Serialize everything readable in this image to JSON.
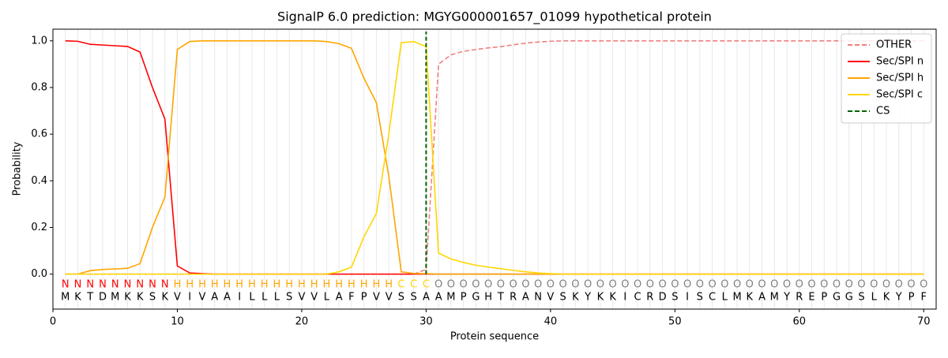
{
  "chart_data": {
    "type": "line",
    "title": "SignalP 6.0 prediction: MGYG000001657_01099 hypothetical protein",
    "xlabel": "Protein sequence",
    "ylabel": "Probability",
    "x": [
      1,
      2,
      3,
      4,
      5,
      6,
      7,
      8,
      9,
      10,
      11,
      12,
      13,
      14,
      15,
      16,
      17,
      18,
      19,
      20,
      21,
      22,
      23,
      24,
      25,
      26,
      27,
      28,
      29,
      30,
      31,
      32,
      33,
      34,
      35,
      36,
      37,
      38,
      39,
      40,
      41,
      42,
      43,
      44,
      45,
      46,
      47,
      48,
      49,
      50,
      51,
      52,
      53,
      54,
      55,
      56,
      57,
      58,
      59,
      60,
      61,
      62,
      63,
      64,
      65,
      66,
      67,
      68,
      69,
      70
    ],
    "sequence": [
      "M",
      "K",
      "T",
      "D",
      "M",
      "K",
      "K",
      "S",
      "K",
      "V",
      "I",
      "V",
      "A",
      "A",
      "I",
      "L",
      "L",
      "L",
      "S",
      "V",
      "V",
      "L",
      "A",
      "F",
      "P",
      "V",
      "V",
      "S",
      "S",
      "A",
      "A",
      "M",
      "P",
      "G",
      "H",
      "T",
      "R",
      "A",
      "N",
      "V",
      "S",
      "K",
      "Y",
      "K",
      "K",
      "I",
      "C",
      "R",
      "D",
      "S",
      "I",
      "S",
      "C",
      "L",
      "M",
      "K",
      "A",
      "M",
      "Y",
      "R",
      "E",
      "P",
      "G",
      "G",
      "S",
      "L",
      "K",
      "Y",
      "P",
      "F"
    ],
    "regions": [
      "N",
      "N",
      "N",
      "N",
      "N",
      "N",
      "N",
      "N",
      "N",
      "H",
      "H",
      "H",
      "H",
      "H",
      "H",
      "H",
      "H",
      "H",
      "H",
      "H",
      "H",
      "H",
      "H",
      "H",
      "H",
      "H",
      "H",
      "C",
      "C",
      "C",
      "O",
      "O",
      "O",
      "O",
      "O",
      "O",
      "O",
      "O",
      "O",
      "O",
      "O",
      "O",
      "O",
      "O",
      "O",
      "O",
      "O",
      "O",
      "O",
      "O",
      "O",
      "O",
      "O",
      "O",
      "O",
      "O",
      "O",
      "O",
      "O",
      "O",
      "O",
      "O",
      "O",
      "O",
      "O",
      "O",
      "O",
      "O",
      "O",
      "O"
    ],
    "region_colors": {
      "N": "#ff0000",
      "H": "#ffa500",
      "C": "#ffd700",
      "O": "#808080"
    },
    "series": [
      {
        "name": "OTHER",
        "color": "#f08080",
        "dashed": true,
        "values": [
          0,
          0,
          0,
          0,
          0,
          0,
          0,
          0,
          0,
          0,
          0,
          0,
          0,
          0,
          0,
          0,
          0,
          0,
          0,
          0,
          0,
          0,
          0,
          0,
          0,
          0,
          0,
          0,
          0,
          0.02,
          0.9,
          0.94,
          0.955,
          0.963,
          0.97,
          0.975,
          0.983,
          0.99,
          0.995,
          0.998,
          1,
          1,
          1,
          1,
          1,
          1,
          1,
          1,
          1,
          1,
          1,
          1,
          1,
          1,
          1,
          1,
          1,
          1,
          1,
          1,
          1,
          1,
          1,
          1,
          1,
          1,
          1,
          1,
          1,
          1
        ]
      },
      {
        "name": "Sec/SPI n",
        "color": "#ff0000",
        "dashed": false,
        "values": [
          1.0,
          0.998,
          0.985,
          0.982,
          0.979,
          0.976,
          0.952,
          0.8,
          0.665,
          0.035,
          0.005,
          0.002,
          0,
          0,
          0,
          0,
          0,
          0,
          0,
          0,
          0,
          0,
          0,
          0,
          0,
          0,
          0,
          0,
          0,
          0,
          0,
          0,
          0,
          0,
          0,
          0,
          0,
          0,
          0,
          0,
          0,
          0,
          0,
          0,
          0,
          0,
          0,
          0,
          0,
          0,
          0,
          0,
          0,
          0,
          0,
          0,
          0,
          0,
          0,
          0,
          0,
          0,
          0,
          0,
          0,
          0,
          0,
          0,
          0,
          0
        ]
      },
      {
        "name": "Sec/SPI h",
        "color": "#ffa500",
        "dashed": false,
        "values": [
          0,
          0,
          0.015,
          0.02,
          0.022,
          0.025,
          0.045,
          0.2,
          0.33,
          0.963,
          0.997,
          1,
          1,
          1,
          1,
          1,
          1,
          1,
          1,
          1,
          1,
          0.997,
          0.988,
          0.968,
          0.84,
          0.735,
          0.42,
          0.01,
          0.003,
          0.002,
          0,
          0,
          0,
          0,
          0,
          0,
          0,
          0,
          0,
          0,
          0,
          0,
          0,
          0,
          0,
          0,
          0,
          0,
          0,
          0,
          0,
          0,
          0,
          0,
          0,
          0,
          0,
          0,
          0,
          0,
          0,
          0,
          0,
          0,
          0,
          0,
          0,
          0,
          0,
          0
        ]
      },
      {
        "name": "Sec/SPI c",
        "color": "#ffd700",
        "dashed": false,
        "values": [
          0,
          0,
          0,
          0,
          0,
          0,
          0,
          0,
          0,
          0,
          0,
          0,
          0,
          0,
          0,
          0,
          0,
          0,
          0,
          0,
          0,
          0,
          0.01,
          0.03,
          0.16,
          0.26,
          0.6,
          0.992,
          0.997,
          0.975,
          0.09,
          0.065,
          0.05,
          0.038,
          0.03,
          0.023,
          0.016,
          0.01,
          0.005,
          0.002,
          0,
          0,
          0,
          0,
          0,
          0,
          0,
          0,
          0,
          0,
          0,
          0,
          0,
          0,
          0,
          0,
          0,
          0,
          0,
          0,
          0,
          0,
          0,
          0,
          0,
          0,
          0,
          0,
          0,
          0
        ]
      }
    ],
    "cs": {
      "name": "CS",
      "x": 30,
      "color": "#006400"
    },
    "xlim": [
      0,
      71
    ],
    "ylim": [
      -0.15,
      1.05
    ],
    "xticks": [
      0,
      10,
      20,
      30,
      40,
      50,
      60,
      70
    ],
    "yticks": [
      {
        "value": 0,
        "label": "0.0"
      },
      {
        "value": 0.2,
        "label": "0.2"
      },
      {
        "value": 0.4,
        "label": "0.4"
      },
      {
        "value": 0.6,
        "label": "0.6"
      },
      {
        "value": 0.8,
        "label": "0.8"
      },
      {
        "value": 1,
        "label": "1.0"
      }
    ],
    "legend": "upper right"
  }
}
